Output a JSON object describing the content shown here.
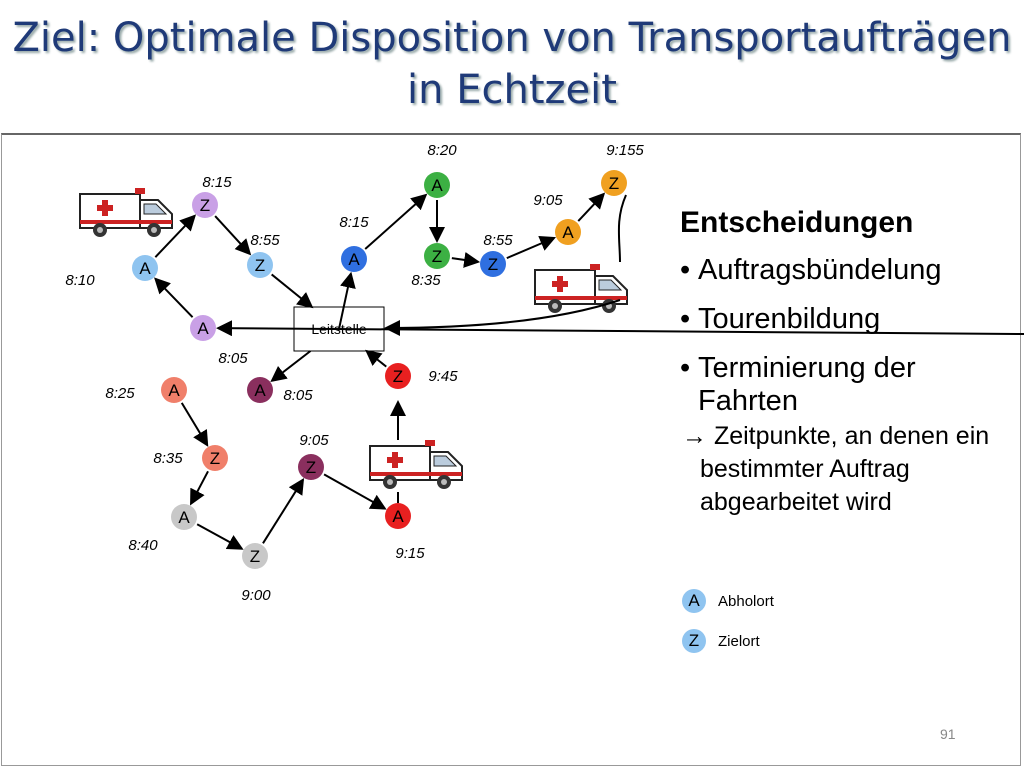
{
  "header": {
    "title": [
      "Ziel: Optimale Disposition von Transportaufträgen",
      "in Echtzeit"
    ]
  },
  "diagram": {
    "center": "Leitstelle",
    "nodes": [
      {
        "label": "Z",
        "time": "8:15"
      },
      {
        "label": "A",
        "time": "8:10"
      },
      {
        "label": "Z",
        "time": "8:55"
      },
      {
        "label": "A",
        "time": "8:05"
      },
      {
        "label": "A",
        "time": "8:15"
      },
      {
        "label": "A",
        "time": "8:20"
      },
      {
        "label": "Z",
        "time": "8:35"
      },
      {
        "label": "Z",
        "time": "8:55"
      },
      {
        "label": "A",
        "time": "9:05"
      },
      {
        "label": "Z",
        "time": "9:155"
      },
      {
        "label": "A",
        "time": "8:25"
      },
      {
        "label": "A",
        "time": "8:05"
      },
      {
        "label": "Z",
        "time": "9:45"
      },
      {
        "label": "Z",
        "time": "8:35"
      },
      {
        "label": "Z",
        "time": "9:05"
      },
      {
        "label": "A",
        "time": "8:40"
      },
      {
        "label": "Z",
        "time": "9:00"
      },
      {
        "label": "A",
        "time": "9:15"
      }
    ]
  },
  "panel": {
    "heading": "Entscheidungen",
    "bullets": [
      "Auftragsbündelung",
      "Tourenbildung",
      "Terminierung der Fahrten"
    ],
    "note": "→ Zeitpunkte, an denen ein bestimmter Auftrag abgearbeitet wird",
    "legend": [
      {
        "symbol": "A",
        "label": "Abholort"
      },
      {
        "symbol": "Z",
        "label": "Zielort"
      }
    ]
  },
  "footer": {
    "page": "91"
  }
}
